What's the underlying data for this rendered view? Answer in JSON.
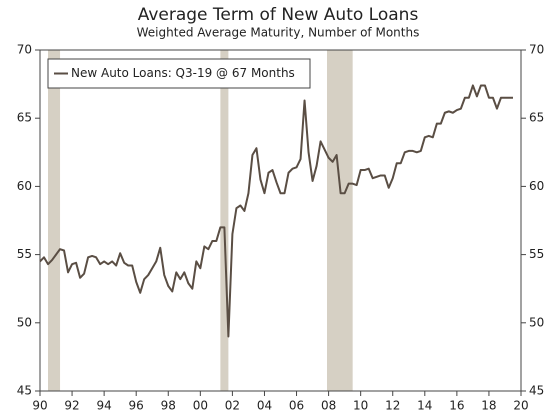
{
  "chart_data": {
    "type": "line",
    "title": "Average Term of New Auto Loans",
    "subtitle": "Weighted Average Maturity, Number of Months",
    "x": [
      1990,
      1990.25,
      1990.5,
      1990.75,
      1991,
      1991.25,
      1991.5,
      1991.75,
      1992,
      1992.25,
      1992.5,
      1992.75,
      1993,
      1993.25,
      1993.5,
      1993.75,
      1994,
      1994.25,
      1994.5,
      1994.75,
      1995,
      1995.25,
      1995.5,
      1995.75,
      1996,
      1996.25,
      1996.5,
      1996.75,
      1997,
      1997.25,
      1997.5,
      1997.75,
      1998,
      1998.25,
      1998.5,
      1998.75,
      1999,
      1999.25,
      1999.5,
      1999.75,
      2000,
      2000.25,
      2000.5,
      2000.75,
      2001,
      2001.25,
      2001.5,
      2001.75,
      2002,
      2002.25,
      2002.5,
      2002.75,
      2003,
      2003.25,
      2003.5,
      2003.75,
      2004,
      2004.25,
      2004.5,
      2004.75,
      2005,
      2005.25,
      2005.5,
      2005.75,
      2006,
      2006.25,
      2006.5,
      2006.75,
      2007,
      2007.25,
      2007.5,
      2007.75,
      2008,
      2008.25,
      2008.5,
      2008.75,
      2009,
      2009.25,
      2009.5,
      2009.75,
      2010,
      2010.25,
      2010.5,
      2010.75,
      2011,
      2011.25,
      2011.5,
      2011.75,
      2012,
      2012.25,
      2012.5,
      2012.75,
      2013,
      2013.25,
      2013.5,
      2013.75,
      2014,
      2014.25,
      2014.5,
      2014.75,
      2015,
      2015.25,
      2015.5,
      2015.75,
      2016,
      2016.25,
      2016.5,
      2016.75,
      2017,
      2017.25,
      2017.5,
      2017.75,
      2018,
      2018.25,
      2018.5,
      2018.75,
      2019,
      2019.25,
      2019.5
    ],
    "series": [
      {
        "name": "New Auto Loans: Q3-19 @ 67 Months",
        "color": "#5a4e44",
        "values": [
          54.5,
          54.8,
          54.3,
          54.6,
          55.0,
          55.4,
          55.3,
          53.7,
          54.3,
          54.4,
          53.3,
          53.6,
          54.8,
          54.9,
          54.8,
          54.3,
          54.5,
          54.3,
          54.5,
          54.2,
          55.1,
          54.4,
          54.2,
          54.2,
          53.0,
          52.2,
          53.2,
          53.5,
          54.0,
          54.5,
          55.5,
          53.5,
          52.7,
          52.3,
          53.7,
          53.2,
          53.7,
          52.9,
          52.5,
          54.5,
          54.0,
          55.6,
          55.4,
          56.0,
          56.0,
          57.0,
          57.0,
          49.0,
          56.5,
          58.4,
          58.6,
          58.2,
          59.5,
          62.3,
          62.8,
          60.5,
          59.5,
          61.0,
          61.2,
          60.3,
          59.5,
          59.5,
          61.0,
          61.3,
          61.4,
          62.0,
          66.3,
          62.5,
          60.4,
          61.5,
          63.3,
          62.7,
          62.1,
          61.8,
          62.3,
          59.5,
          59.5,
          60.2,
          60.2,
          60.1,
          61.2,
          61.2,
          61.3,
          60.6,
          60.7,
          60.8,
          60.8,
          59.9,
          60.6,
          61.7,
          61.7,
          62.5,
          62.6,
          62.6,
          62.5,
          62.6,
          63.6,
          63.7,
          63.6,
          64.6,
          64.6,
          65.4,
          65.5,
          65.4,
          65.6,
          65.7,
          66.5,
          66.5,
          67.4,
          66.6,
          67.4,
          67.4,
          66.5,
          66.5,
          65.7,
          66.5,
          66.5,
          66.5,
          66.5
        ]
      }
    ],
    "recessions": [
      [
        1990.5,
        1991.25
      ],
      [
        2001.25,
        2001.75
      ],
      [
        2007.9,
        2009.5
      ]
    ],
    "recession_color": "#d6d0c4",
    "xlim": [
      1990,
      2020
    ],
    "xticks": [
      {
        "value": 1990,
        "label": "90"
      },
      {
        "value": 1992,
        "label": "92"
      },
      {
        "value": 1994,
        "label": "94"
      },
      {
        "value": 1996,
        "label": "96"
      },
      {
        "value": 1998,
        "label": "98"
      },
      {
        "value": 2000,
        "label": "00"
      },
      {
        "value": 2002,
        "label": "02"
      },
      {
        "value": 2004,
        "label": "04"
      },
      {
        "value": 2006,
        "label": "06"
      },
      {
        "value": 2008,
        "label": "08"
      },
      {
        "value": 2010,
        "label": "10"
      },
      {
        "value": 2012,
        "label": "12"
      },
      {
        "value": 2014,
        "label": "14"
      },
      {
        "value": 2016,
        "label": "16"
      },
      {
        "value": 2018,
        "label": "18"
      },
      {
        "value": 2020,
        "label": "20"
      }
    ],
    "ylim": [
      45,
      70
    ],
    "yticks": [
      45,
      50,
      55,
      60,
      65,
      70
    ],
    "y2lim": [
      45,
      70
    ],
    "y2ticks": [
      45,
      50,
      55,
      60,
      65,
      70
    ],
    "legend": "upper left"
  }
}
